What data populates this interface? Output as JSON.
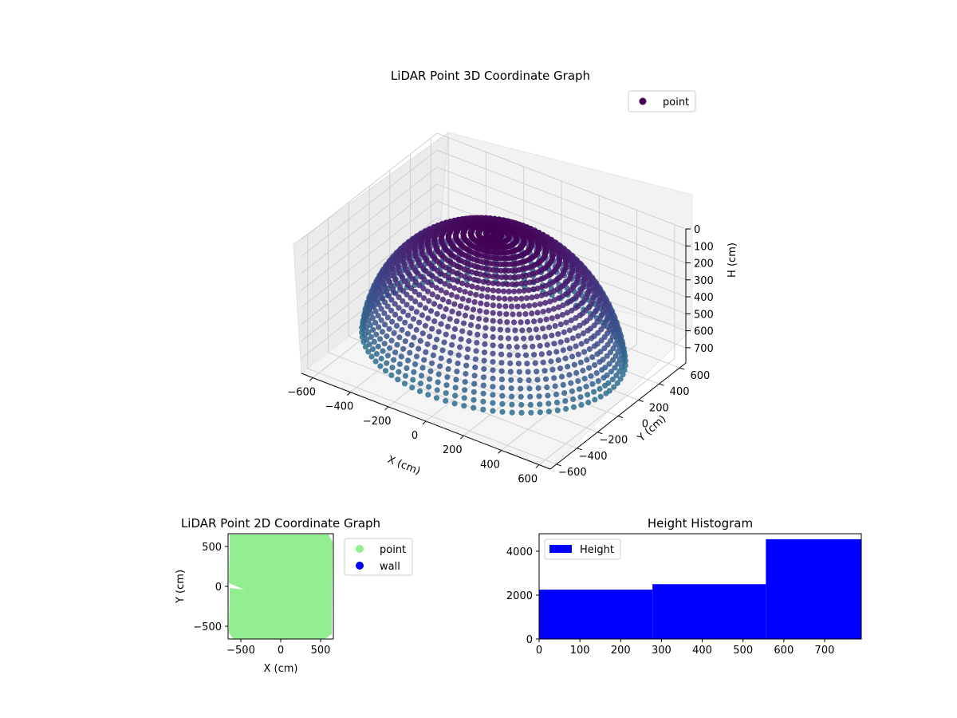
{
  "chart_data": [
    {
      "type": "scatter",
      "projection": "3d",
      "title": "LiDAR Point 3D Coordinate Graph",
      "xlabel": "X (cm)",
      "ylabel": "Y (cm)",
      "zlabel": "H (cm)",
      "x_ticks": [
        "−600",
        "−400",
        "−200",
        "0",
        "200",
        "400",
        "600"
      ],
      "y_ticks": [
        "−600",
        "−400",
        "−200",
        "0",
        "200",
        "400",
        "600"
      ],
      "z_ticks": [
        "0",
        "100",
        "200",
        "300",
        "400",
        "500",
        "600",
        "700"
      ],
      "xlim": [
        -660,
        660
      ],
      "ylim": [
        -660,
        660
      ],
      "zlim": [
        0,
        790
      ],
      "z_inverted": true,
      "grid": true,
      "legend": {
        "position": "top-right",
        "entries": [
          {
            "label": "point",
            "color": "#440154"
          }
        ]
      },
      "colormap": "viridis",
      "series": [
        {
          "name": "point",
          "shape": "hemispherical bowl point cloud: top rim near H=0, bottom near H=750, radius about 600 cm",
          "approx_points": 10000
        }
      ],
      "colors": {
        "point_dark": "#440154",
        "point_mid": "#3b528b",
        "point_light": "#21918c"
      }
    },
    {
      "type": "scatter",
      "title": "LiDAR Point 2D Coordinate Graph",
      "xlabel": "X (cm)",
      "ylabel": "Y (cm)",
      "x_ticks": [
        "−500",
        "0",
        "500"
      ],
      "y_ticks": [
        "500",
        "0",
        "−500"
      ],
      "xlim": [
        -660,
        660
      ],
      "ylim": [
        -660,
        660
      ],
      "legend": {
        "position": "outside right",
        "entries": [
          {
            "label": "point",
            "color": "#90ee90"
          },
          {
            "label": "wall",
            "color": "#0000ff"
          }
        ]
      },
      "series": [
        {
          "name": "point",
          "color": "#90ee90",
          "shape": "dense filled square covering about −650 to 650 cm on both axes"
        },
        {
          "name": "wall",
          "color": "#0000ff",
          "shape": "no visible points"
        }
      ]
    },
    {
      "type": "bar",
      "subtype": "histogram",
      "title": "Height Histogram",
      "x_ticks": [
        "0",
        "100",
        "200",
        "300",
        "400",
        "500",
        "600",
        "700"
      ],
      "y_ticks": [
        "0",
        "2000",
        "4000"
      ],
      "xlim": [
        0,
        790
      ],
      "ylim": [
        0,
        4800
      ],
      "legend": {
        "position": "top-left",
        "entries": [
          {
            "label": "Height",
            "color": "#0000ff"
          }
        ]
      },
      "bins": [
        {
          "start": 0,
          "end": 278,
          "count": 2250
        },
        {
          "start": 278,
          "end": 556,
          "count": 2500
        },
        {
          "start": 556,
          "end": 790,
          "count": 4550
        }
      ],
      "colors": {
        "bar": "#0000ff"
      }
    }
  ]
}
